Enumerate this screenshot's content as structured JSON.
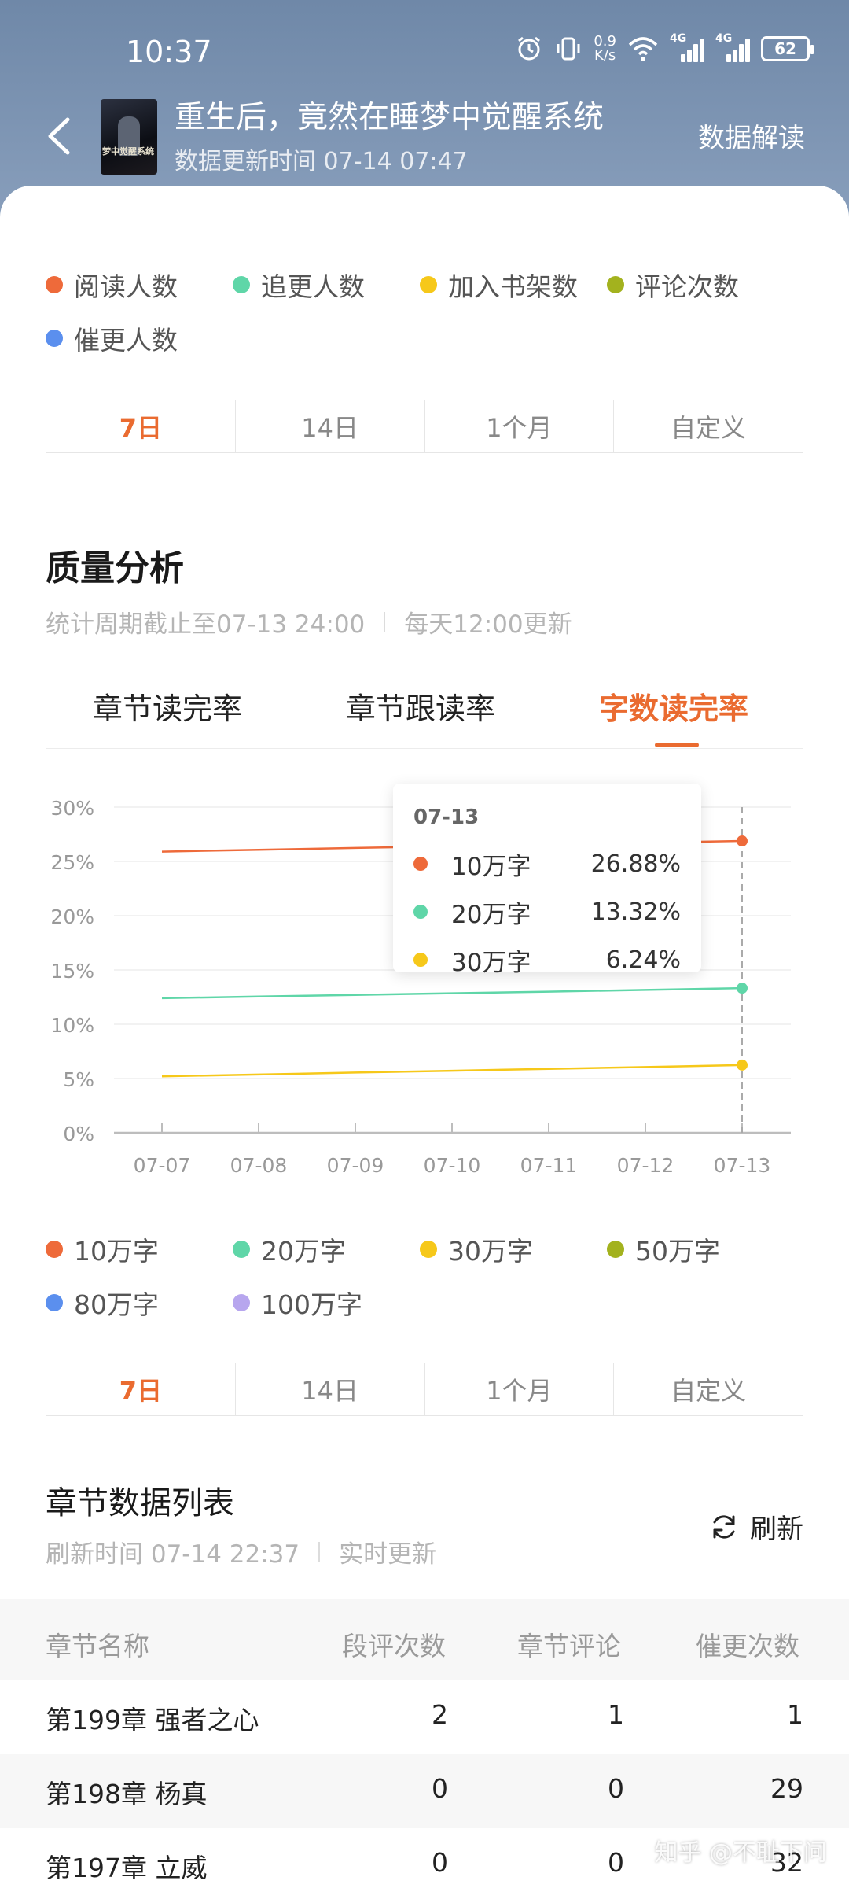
{
  "status_bar": {
    "time": "10:37",
    "net_speed_top": "0.9",
    "net_speed_unit": "K/s",
    "signal_1": "4G",
    "signal_2": "4G",
    "battery": "62"
  },
  "header": {
    "title": "重生后，竟然在睡梦中觉醒系统",
    "update_time": "数据更新时间 07-14 07:47",
    "interpret_label": "数据解读",
    "cover_text": "梦中觉醒系统"
  },
  "reader_legend": [
    {
      "label": "阅读人数",
      "color": "#ee6a3a"
    },
    {
      "label": "追更人数",
      "color": "#5fd6a8"
    },
    {
      "label": "加入书架数",
      "color": "#f6c81a"
    },
    {
      "label": "评论次数",
      "color": "#a3b21e"
    },
    {
      "label": "催更人数",
      "color": "#5b8fee"
    }
  ],
  "range_tabs_1": [
    "7日",
    "14日",
    "1个月",
    "自定义"
  ],
  "quality": {
    "title": "质量分析",
    "period": "统计周期截止至07-13 24:00",
    "update_note": "每天12:00更新",
    "tabs": [
      "章节读完率",
      "章节跟读率",
      "字数读完率"
    ],
    "active_tab": "字数读完率"
  },
  "chart_data": {
    "type": "line",
    "x": [
      "07-07",
      "07-08",
      "07-09",
      "07-10",
      "07-11",
      "07-12",
      "07-13"
    ],
    "ylim": [
      0,
      30
    ],
    "yticks": [
      "0%",
      "5%",
      "10%",
      "15%",
      "20%",
      "25%",
      "30%"
    ],
    "grid": true,
    "series": [
      {
        "name": "10万字",
        "color": "#ee6a3a",
        "values": [
          25.9,
          26.07,
          26.24,
          26.4,
          26.56,
          26.72,
          26.88
        ]
      },
      {
        "name": "20万字",
        "color": "#5fd6a8",
        "values": [
          12.4,
          12.55,
          12.7,
          12.85,
          13.0,
          13.16,
          13.32
        ]
      },
      {
        "name": "30万字",
        "color": "#f6c81a",
        "values": [
          5.2,
          5.37,
          5.55,
          5.72,
          5.89,
          6.06,
          6.24
        ]
      }
    ],
    "tooltip": {
      "date": "07-13",
      "rows": [
        {
          "label": "10万字",
          "value": "26.88%",
          "color": "#ee6a3a"
        },
        {
          "label": "20万字",
          "value": "13.32%",
          "color": "#5fd6a8"
        },
        {
          "label": "30万字",
          "value": "6.24%",
          "color": "#f6c81a"
        }
      ]
    }
  },
  "word_legend": [
    {
      "label": "10万字",
      "color": "#ee6a3a"
    },
    {
      "label": "20万字",
      "color": "#5fd6a8"
    },
    {
      "label": "30万字",
      "color": "#f6c81a"
    },
    {
      "label": "50万字",
      "color": "#a3b21e"
    },
    {
      "label": "80万字",
      "color": "#5b8fee"
    },
    {
      "label": "100万字",
      "color": "#b7a6ee"
    }
  ],
  "range_tabs_2": [
    "7日",
    "14日",
    "1个月",
    "自定义"
  ],
  "chapters": {
    "title": "章节数据列表",
    "refresh_time": "刷新时间 07-14 22:37",
    "realtime": "实时更新",
    "refresh_label": "刷新",
    "columns": [
      "章节名称",
      "段评次数",
      "章节评论",
      "催更次数"
    ],
    "rows": [
      {
        "name": "第199章 强者之心",
        "para": "2",
        "comments": "1",
        "urge": "1"
      },
      {
        "name": "第198章 杨真",
        "para": "0",
        "comments": "0",
        "urge": "29"
      },
      {
        "name": "第197章 立威",
        "para": "0",
        "comments": "0",
        "urge": "32"
      }
    ]
  },
  "watermark": "知乎 @不耻下问"
}
